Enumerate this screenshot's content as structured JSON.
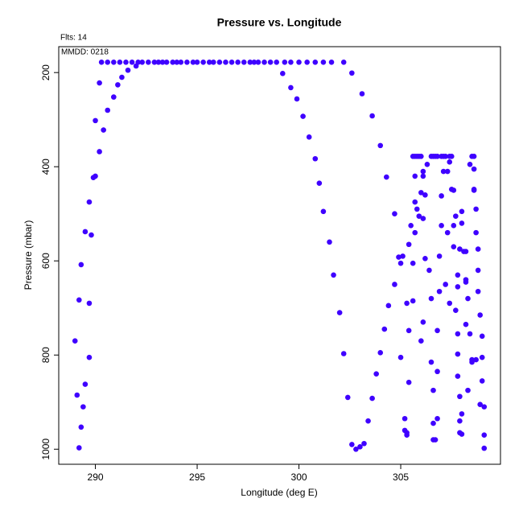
{
  "chart_data": {
    "type": "scatter",
    "title": "Pressure vs. Longitude",
    "annotations": [
      "Flts: 14",
      "MMDD: 0218"
    ],
    "x_label": "Longitude (deg E)",
    "y_label": "Pressure (mbar)",
    "color": "#3f00ff",
    "xlim": [
      288.2,
      309.9
    ],
    "ylim": [
      1032,
      145
    ],
    "xticks": [
      290,
      295,
      300,
      305
    ],
    "yticks": [
      200,
      400,
      600,
      800,
      1000
    ],
    "x": [
      289.0,
      289.1,
      289.2,
      289.2,
      289.3,
      289.3,
      289.4,
      289.5,
      289.5,
      289.7,
      289.7,
      289.7,
      289.8,
      289.9,
      290.0,
      290.0,
      290.2,
      290.2,
      290.4,
      290.6,
      290.9,
      291.1,
      291.3,
      291.6,
      292.0,
      290.3,
      290.6,
      290.9,
      291.2,
      291.5,
      291.8,
      292.1,
      292.3,
      292.6,
      292.9,
      293.1,
      293.3,
      293.5,
      293.8,
      294.0,
      294.2,
      294.5,
      294.8,
      295.0,
      295.3,
      295.6,
      295.8,
      296.1,
      296.4,
      296.7,
      297.0,
      297.3,
      297.6,
      297.8,
      298.0,
      298.3,
      298.6,
      298.9,
      299.3,
      299.6,
      300.0,
      300.4,
      300.8,
      301.2,
      301.6,
      302.2,
      299.2,
      299.6,
      299.9,
      300.2,
      300.5,
      300.8,
      301.0,
      301.2,
      301.5,
      301.7,
      302.0,
      302.2,
      302.4,
      302.6,
      302.8,
      303.0,
      303.2,
      302.6,
      303.1,
      303.6,
      304.0,
      304.3,
      304.7,
      304.9,
      304.7,
      304.4,
      304.2,
      304.0,
      303.8,
      303.6,
      303.4,
      305.0,
      305.1,
      305.0,
      305.2,
      305.2,
      305.3,
      305.3,
      305.3,
      305.4,
      305.5,
      305.6,
      305.6,
      305.4,
      305.4,
      305.6,
      305.7,
      305.8,
      305.9,
      306.0,
      305.7,
      305.7,
      305.8,
      305.7,
      306.0,
      306.1,
      306.1,
      306.2,
      306.1,
      306.2,
      306.1,
      306.0,
      305.9,
      306.3,
      306.5,
      306.6,
      306.7,
      306.8,
      307.0,
      307.1,
      307.2,
      307.4,
      307.5,
      306.4,
      306.5,
      306.5,
      306.6,
      306.6,
      306.6,
      306.7,
      306.8,
      306.8,
      306.8,
      306.9,
      306.9,
      307.0,
      307.0,
      307.1,
      307.3,
      307.4,
      307.3,
      307.2,
      307.4,
      307.6,
      307.5,
      307.7,
      307.6,
      307.6,
      307.8,
      307.8,
      307.7,
      307.8,
      307.8,
      307.8,
      307.9,
      307.9,
      307.9,
      308.0,
      308.0,
      307.9,
      308.0,
      308.1,
      308.2,
      308.2,
      308.2,
      308.2,
      308.3,
      308.5,
      308.6,
      308.4,
      308.5,
      308.4,
      308.6,
      308.6,
      308.7,
      308.7,
      308.8,
      308.8,
      308.8,
      308.7,
      308.9,
      309.0,
      309.0,
      309.0,
      308.9,
      309.1,
      309.1,
      309.1,
      308.5,
      308.6,
      308.3,
      308.0
    ],
    "values": [
      770,
      885,
      683,
      997,
      953,
      608,
      910,
      862,
      538,
      805,
      690,
      475,
      545,
      423,
      420,
      302,
      368,
      222,
      322,
      280,
      252,
      226,
      210,
      195,
      186,
      178,
      178,
      178,
      178,
      178,
      178,
      178,
      178,
      178,
      178,
      178,
      178,
      178,
      178,
      178,
      178,
      178,
      178,
      178,
      178,
      178,
      178,
      178,
      178,
      178,
      178,
      178,
      178,
      178,
      178,
      178,
      178,
      178,
      178,
      178,
      178,
      178,
      178,
      178,
      178,
      178,
      202,
      232,
      256,
      293,
      337,
      383,
      435,
      495,
      560,
      630,
      710,
      797,
      890,
      990,
      1000,
      995,
      988,
      201,
      245,
      292,
      355,
      422,
      500,
      592,
      650,
      695,
      745,
      795,
      840,
      892,
      940,
      605,
      590,
      805,
      935,
      960,
      965,
      970,
      690,
      565,
      525,
      685,
      605,
      858,
      748,
      378,
      378,
      378,
      378,
      378,
      420,
      475,
      490,
      540,
      455,
      410,
      420,
      460,
      510,
      595,
      730,
      770,
      505,
      395,
      378,
      378,
      378,
      378,
      378,
      378,
      378,
      378,
      378,
      620,
      680,
      815,
      875,
      945,
      980,
      980,
      935,
      835,
      748,
      665,
      590,
      525,
      462,
      410,
      410,
      390,
      540,
      650,
      690,
      450,
      448,
      505,
      570,
      525,
      630,
      655,
      705,
      755,
      798,
      845,
      888,
      940,
      965,
      968,
      925,
      575,
      495,
      580,
      580,
      640,
      645,
      735,
      680,
      378,
      378,
      395,
      815,
      755,
      405,
      450,
      490,
      540,
      575,
      620,
      665,
      810,
      715,
      760,
      805,
      855,
      905,
      910,
      970,
      998,
      810,
      448,
      875,
      520
    ]
  }
}
